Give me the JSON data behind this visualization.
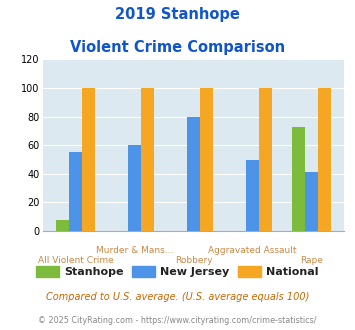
{
  "title_line1": "2019 Stanhope",
  "title_line2": "Violent Crime Comparison",
  "categories": [
    "All Violent Crime",
    "Murder & Mans...",
    "Robbery",
    "Aggravated Assault",
    "Rape"
  ],
  "stanhope": [
    8,
    0,
    0,
    0,
    73
  ],
  "new_jersey": [
    55,
    60,
    80,
    50,
    41
  ],
  "national": [
    100,
    100,
    100,
    100,
    100
  ],
  "color_stanhope": "#7cbb3c",
  "color_nj": "#4d94e8",
  "color_national": "#f5a623",
  "ylim": [
    0,
    120
  ],
  "yticks": [
    0,
    20,
    40,
    60,
    80,
    100,
    120
  ],
  "bg_color": "#dce9f0",
  "footnote1": "Compared to U.S. average. (U.S. average equals 100)",
  "footnote2": "© 2025 CityRating.com - https://www.cityrating.com/crime-statistics/",
  "title_color": "#1155cc",
  "footnote1_color": "#cc6600",
  "footnote2_color": "#888888",
  "xlabel_color": "#cc8844",
  "bar_width": 0.22
}
